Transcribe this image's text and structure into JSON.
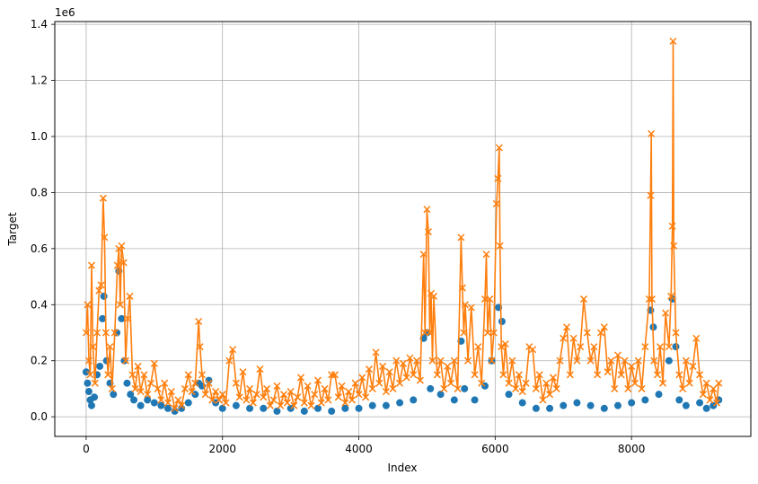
{
  "chart_data": {
    "type": "line",
    "title": "",
    "xlabel": "Index",
    "ylabel": "Target",
    "y_offset_text": "1e6",
    "xlim": [
      -460,
      9750
    ],
    "ylim": [
      -70000,
      1410000
    ],
    "xticks": [
      0,
      2000,
      4000,
      6000,
      8000
    ],
    "xtick_labels": [
      "0",
      "2000",
      "4000",
      "6000",
      "8000"
    ],
    "yticks": [
      0,
      200000,
      400000,
      600000,
      800000,
      1000000,
      1200000,
      1400000
    ],
    "ytick_labels": [
      "0.0",
      "0.2",
      "0.4",
      "0.6",
      "0.8",
      "1.0",
      "1.2",
      "1.4"
    ],
    "grid": true,
    "legend": "none",
    "series": [
      {
        "color": "#1f77b4",
        "marker": "circle",
        "line": false,
        "points": [
          [
            0,
            160000
          ],
          [
            20,
            120000
          ],
          [
            40,
            90000
          ],
          [
            60,
            60000
          ],
          [
            80,
            40000
          ],
          [
            120,
            70000
          ],
          [
            160,
            150000
          ],
          [
            200,
            180000
          ],
          [
            240,
            350000
          ],
          [
            260,
            430000
          ],
          [
            300,
            200000
          ],
          [
            350,
            120000
          ],
          [
            400,
            80000
          ],
          [
            450,
            300000
          ],
          [
            480,
            520000
          ],
          [
            520,
            350000
          ],
          [
            560,
            200000
          ],
          [
            600,
            120000
          ],
          [
            650,
            80000
          ],
          [
            700,
            60000
          ],
          [
            800,
            40000
          ],
          [
            900,
            60000
          ],
          [
            1000,
            50000
          ],
          [
            1100,
            40000
          ],
          [
            1200,
            30000
          ],
          [
            1300,
            20000
          ],
          [
            1400,
            30000
          ],
          [
            1500,
            50000
          ],
          [
            1600,
            80000
          ],
          [
            1650,
            120000
          ],
          [
            1700,
            110000
          ],
          [
            1800,
            130000
          ],
          [
            1900,
            50000
          ],
          [
            2000,
            30000
          ],
          [
            2200,
            40000
          ],
          [
            2400,
            30000
          ],
          [
            2600,
            30000
          ],
          [
            2800,
            20000
          ],
          [
            3000,
            30000
          ],
          [
            3200,
            20000
          ],
          [
            3400,
            30000
          ],
          [
            3600,
            20000
          ],
          [
            3800,
            30000
          ],
          [
            4000,
            30000
          ],
          [
            4200,
            40000
          ],
          [
            4400,
            40000
          ],
          [
            4600,
            50000
          ],
          [
            4800,
            60000
          ],
          [
            4950,
            280000
          ],
          [
            5000,
            300000
          ],
          [
            5050,
            100000
          ],
          [
            5200,
            80000
          ],
          [
            5400,
            60000
          ],
          [
            5500,
            270000
          ],
          [
            5550,
            100000
          ],
          [
            5700,
            60000
          ],
          [
            5850,
            110000
          ],
          [
            5950,
            200000
          ],
          [
            6050,
            390000
          ],
          [
            6100,
            340000
          ],
          [
            6200,
            80000
          ],
          [
            6400,
            50000
          ],
          [
            6600,
            30000
          ],
          [
            6800,
            30000
          ],
          [
            7000,
            40000
          ],
          [
            7200,
            50000
          ],
          [
            7400,
            40000
          ],
          [
            7600,
            30000
          ],
          [
            7800,
            40000
          ],
          [
            8000,
            50000
          ],
          [
            8200,
            60000
          ],
          [
            8280,
            380000
          ],
          [
            8320,
            320000
          ],
          [
            8400,
            80000
          ],
          [
            8550,
            200000
          ],
          [
            8600,
            420000
          ],
          [
            8650,
            250000
          ],
          [
            8700,
            60000
          ],
          [
            8800,
            40000
          ],
          [
            9000,
            50000
          ],
          [
            9100,
            30000
          ],
          [
            9200,
            40000
          ],
          [
            9280,
            60000
          ]
        ]
      },
      {
        "color": "#ff7f0e",
        "marker": "x",
        "line": true,
        "points": [
          [
            0,
            300000
          ],
          [
            20,
            400000
          ],
          [
            40,
            200000
          ],
          [
            60,
            150000
          ],
          [
            80,
            540000
          ],
          [
            100,
            250000
          ],
          [
            130,
            120000
          ],
          [
            160,
            300000
          ],
          [
            190,
            450000
          ],
          [
            220,
            470000
          ],
          [
            250,
            780000
          ],
          [
            270,
            640000
          ],
          [
            290,
            300000
          ],
          [
            320,
            150000
          ],
          [
            350,
            250000
          ],
          [
            380,
            100000
          ],
          [
            420,
            300000
          ],
          [
            460,
            540000
          ],
          [
            480,
            600000
          ],
          [
            500,
            400000
          ],
          [
            520,
            610000
          ],
          [
            550,
            550000
          ],
          [
            580,
            200000
          ],
          [
            610,
            350000
          ],
          [
            640,
            430000
          ],
          [
            680,
            150000
          ],
          [
            720,
            100000
          ],
          [
            760,
            180000
          ],
          [
            800,
            90000
          ],
          [
            850,
            150000
          ],
          [
            900,
            80000
          ],
          [
            950,
            120000
          ],
          [
            1000,
            190000
          ],
          [
            1050,
            100000
          ],
          [
            1100,
            60000
          ],
          [
            1150,
            120000
          ],
          [
            1200,
            50000
          ],
          [
            1250,
            90000
          ],
          [
            1300,
            30000
          ],
          [
            1350,
            60000
          ],
          [
            1400,
            40000
          ],
          [
            1450,
            100000
          ],
          [
            1500,
            150000
          ],
          [
            1550,
            90000
          ],
          [
            1600,
            120000
          ],
          [
            1650,
            340000
          ],
          [
            1670,
            250000
          ],
          [
            1700,
            150000
          ],
          [
            1750,
            80000
          ],
          [
            1800,
            120000
          ],
          [
            1850,
            60000
          ],
          [
            1900,
            90000
          ],
          [
            1950,
            60000
          ],
          [
            2000,
            80000
          ],
          [
            2050,
            50000
          ],
          [
            2100,
            200000
          ],
          [
            2150,
            240000
          ],
          [
            2200,
            120000
          ],
          [
            2250,
            70000
          ],
          [
            2300,
            160000
          ],
          [
            2350,
            60000
          ],
          [
            2400,
            100000
          ],
          [
            2450,
            50000
          ],
          [
            2500,
            80000
          ],
          [
            2550,
            170000
          ],
          [
            2600,
            70000
          ],
          [
            2650,
            100000
          ],
          [
            2700,
            40000
          ],
          [
            2750,
            60000
          ],
          [
            2800,
            110000
          ],
          [
            2850,
            40000
          ],
          [
            2900,
            80000
          ],
          [
            2950,
            50000
          ],
          [
            3000,
            90000
          ],
          [
            3050,
            40000
          ],
          [
            3100,
            70000
          ],
          [
            3150,
            140000
          ],
          [
            3200,
            50000
          ],
          [
            3250,
            110000
          ],
          [
            3300,
            40000
          ],
          [
            3350,
            80000
          ],
          [
            3400,
            130000
          ],
          [
            3450,
            50000
          ],
          [
            3500,
            100000
          ],
          [
            3550,
            60000
          ],
          [
            3600,
            150000
          ],
          [
            3650,
            150000
          ],
          [
            3700,
            70000
          ],
          [
            3750,
            110000
          ],
          [
            3800,
            50000
          ],
          [
            3850,
            90000
          ],
          [
            3900,
            60000
          ],
          [
            3950,
            120000
          ],
          [
            4000,
            80000
          ],
          [
            4050,
            140000
          ],
          [
            4100,
            70000
          ],
          [
            4150,
            170000
          ],
          [
            4200,
            100000
          ],
          [
            4250,
            230000
          ],
          [
            4300,
            120000
          ],
          [
            4350,
            180000
          ],
          [
            4400,
            90000
          ],
          [
            4450,
            160000
          ],
          [
            4500,
            100000
          ],
          [
            4550,
            200000
          ],
          [
            4600,
            120000
          ],
          [
            4650,
            190000
          ],
          [
            4700,
            140000
          ],
          [
            4750,
            210000
          ],
          [
            4800,
            150000
          ],
          [
            4850,
            200000
          ],
          [
            4900,
            130000
          ],
          [
            4950,
            580000
          ],
          [
            4970,
            300000
          ],
          [
            5000,
            740000
          ],
          [
            5020,
            660000
          ],
          [
            5040,
            300000
          ],
          [
            5060,
            440000
          ],
          [
            5080,
            200000
          ],
          [
            5100,
            430000
          ],
          [
            5150,
            150000
          ],
          [
            5200,
            200000
          ],
          [
            5250,
            100000
          ],
          [
            5300,
            180000
          ],
          [
            5350,
            120000
          ],
          [
            5400,
            200000
          ],
          [
            5450,
            100000
          ],
          [
            5500,
            640000
          ],
          [
            5520,
            460000
          ],
          [
            5540,
            300000
          ],
          [
            5560,
            400000
          ],
          [
            5600,
            200000
          ],
          [
            5650,
            390000
          ],
          [
            5700,
            150000
          ],
          [
            5750,
            250000
          ],
          [
            5800,
            120000
          ],
          [
            5850,
            420000
          ],
          [
            5870,
            580000
          ],
          [
            5890,
            300000
          ],
          [
            5920,
            420000
          ],
          [
            5950,
            200000
          ],
          [
            5980,
            300000
          ],
          [
            6020,
            760000
          ],
          [
            6040,
            850000
          ],
          [
            6060,
            960000
          ],
          [
            6070,
            610000
          ],
          [
            6090,
            250000
          ],
          [
            6120,
            150000
          ],
          [
            6150,
            260000
          ],
          [
            6200,
            120000
          ],
          [
            6250,
            200000
          ],
          [
            6300,
            100000
          ],
          [
            6350,
            150000
          ],
          [
            6400,
            90000
          ],
          [
            6450,
            120000
          ],
          [
            6500,
            250000
          ],
          [
            6550,
            240000
          ],
          [
            6600,
            100000
          ],
          [
            6650,
            150000
          ],
          [
            6700,
            60000
          ],
          [
            6750,
            120000
          ],
          [
            6800,
            80000
          ],
          [
            6850,
            140000
          ],
          [
            6900,
            100000
          ],
          [
            6950,
            200000
          ],
          [
            7000,
            280000
          ],
          [
            7050,
            320000
          ],
          [
            7100,
            150000
          ],
          [
            7150,
            280000
          ],
          [
            7200,
            200000
          ],
          [
            7250,
            250000
          ],
          [
            7300,
            420000
          ],
          [
            7350,
            300000
          ],
          [
            7400,
            200000
          ],
          [
            7450,
            250000
          ],
          [
            7500,
            150000
          ],
          [
            7550,
            300000
          ],
          [
            7600,
            320000
          ],
          [
            7650,
            160000
          ],
          [
            7700,
            200000
          ],
          [
            7750,
            100000
          ],
          [
            7800,
            220000
          ],
          [
            7850,
            150000
          ],
          [
            7900,
            200000
          ],
          [
            7950,
            100000
          ],
          [
            8000,
            180000
          ],
          [
            8050,
            120000
          ],
          [
            8100,
            200000
          ],
          [
            8150,
            100000
          ],
          [
            8200,
            250000
          ],
          [
            8260,
            420000
          ],
          [
            8280,
            790000
          ],
          [
            8290,
            1010000
          ],
          [
            8300,
            420000
          ],
          [
            8330,
            200000
          ],
          [
            8380,
            150000
          ],
          [
            8420,
            250000
          ],
          [
            8460,
            120000
          ],
          [
            8500,
            370000
          ],
          [
            8550,
            250000
          ],
          [
            8580,
            430000
          ],
          [
            8600,
            680000
          ],
          [
            8610,
            1340000
          ],
          [
            8620,
            610000
          ],
          [
            8650,
            300000
          ],
          [
            8700,
            150000
          ],
          [
            8750,
            100000
          ],
          [
            8800,
            200000
          ],
          [
            8850,
            120000
          ],
          [
            8900,
            180000
          ],
          [
            8950,
            280000
          ],
          [
            9000,
            150000
          ],
          [
            9050,
            80000
          ],
          [
            9100,
            120000
          ],
          [
            9150,
            60000
          ],
          [
            9200,
            100000
          ],
          [
            9250,
            50000
          ],
          [
            9280,
            120000
          ]
        ]
      }
    ]
  }
}
